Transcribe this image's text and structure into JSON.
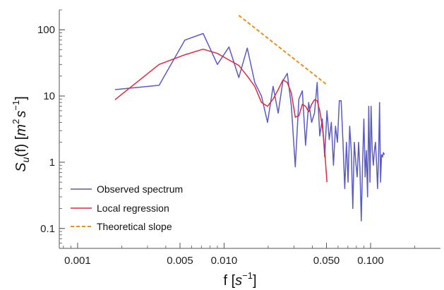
{
  "chart_data": {
    "type": "line",
    "title": "",
    "xlabel": {
      "base": "f",
      "unit": "s",
      "unit_exp": "−1"
    },
    "ylabel": {
      "base": "S",
      "sub": "u",
      "arg": "(f)",
      "unit1": "m",
      "unit1_exp": "2",
      "unit2": "s",
      "unit2_exp": "−1"
    },
    "xscale": "log",
    "yscale": "log",
    "xlim": [
      0.00075,
      0.3
    ],
    "ylim": [
      0.05,
      200
    ],
    "grid": false,
    "legend_position": "bottom-left",
    "x_ticks": [
      {
        "value": 0.001,
        "label": "0.001"
      },
      {
        "value": 0.005,
        "label": "0.005"
      },
      {
        "value": 0.01,
        "label": "0.010"
      },
      {
        "value": 0.05,
        "label": "0.050"
      },
      {
        "value": 0.1,
        "label": "0.100"
      }
    ],
    "y_ticks": [
      {
        "value": 0.1,
        "label": "0.1"
      },
      {
        "value": 1,
        "label": "1"
      },
      {
        "value": 10,
        "label": "10"
      },
      {
        "value": 100,
        "label": "100"
      }
    ],
    "series": [
      {
        "name": "Observed spectrum",
        "color": "#5a5ac8",
        "style": "solid",
        "points": [
          [
            0.0018,
            12.5
          ],
          [
            0.0036,
            14.5
          ],
          [
            0.0054,
            70
          ],
          [
            0.0072,
            88
          ],
          [
            0.009,
            30
          ],
          [
            0.0108,
            55
          ],
          [
            0.0126,
            19
          ],
          [
            0.0144,
            53
          ],
          [
            0.0162,
            16
          ],
          [
            0.018,
            10
          ],
          [
            0.0198,
            4
          ],
          [
            0.0216,
            14
          ],
          [
            0.0234,
            5.5
          ],
          [
            0.0252,
            17
          ],
          [
            0.027,
            22
          ],
          [
            0.0288,
            7
          ],
          [
            0.0306,
            0.85
          ],
          [
            0.0324,
            9
          ],
          [
            0.0342,
            12
          ],
          [
            0.036,
            1.8
          ],
          [
            0.0378,
            8
          ],
          [
            0.0396,
            4
          ],
          [
            0.0414,
            5.5
          ],
          [
            0.0432,
            16
          ],
          [
            0.045,
            2.5
          ],
          [
            0.0468,
            4.5
          ],
          [
            0.0486,
            1.2
          ],
          [
            0.0504,
            6
          ],
          [
            0.0522,
            2.2
          ],
          [
            0.054,
            4
          ],
          [
            0.0558,
            0.9
          ],
          [
            0.0576,
            3.5
          ],
          [
            0.0594,
            2
          ],
          [
            0.0612,
            8.5
          ],
          [
            0.063,
            8.5
          ],
          [
            0.0648,
            2
          ],
          [
            0.0666,
            0.4
          ],
          [
            0.0684,
            2
          ],
          [
            0.0702,
            0.5
          ],
          [
            0.072,
            3.5
          ],
          [
            0.0738,
            1.5
          ],
          [
            0.0756,
            0.2
          ],
          [
            0.0774,
            2
          ],
          [
            0.0792,
            1
          ],
          [
            0.081,
            0.6
          ],
          [
            0.0828,
            2
          ],
          [
            0.0846,
            0.8
          ],
          [
            0.0864,
            0.13
          ],
          [
            0.0882,
            1
          ],
          [
            0.09,
            4.5
          ],
          [
            0.0918,
            0.6
          ],
          [
            0.0936,
            1.5
          ],
          [
            0.0954,
            0.3
          ],
          [
            0.0972,
            7
          ],
          [
            0.099,
            0.5
          ],
          [
            0.1008,
            7
          ],
          [
            0.1026,
            1.5
          ],
          [
            0.1044,
            0.9
          ],
          [
            0.1062,
            1.5
          ],
          [
            0.108,
            2
          ],
          [
            0.1098,
            1
          ],
          [
            0.1116,
            0.4
          ],
          [
            0.1134,
            1.2
          ],
          [
            0.1152,
            8
          ],
          [
            0.117,
            0.5
          ],
          [
            0.1188,
            1.3
          ],
          [
            0.1206,
            1.2
          ],
          [
            0.1224,
            1.4
          ],
          [
            0.1242,
            1.3
          ]
        ]
      },
      {
        "name": "Local regression",
        "color": "#e6283c",
        "style": "solid",
        "points": [
          [
            0.0018,
            8.8
          ],
          [
            0.0036,
            30
          ],
          [
            0.0054,
            42
          ],
          [
            0.0072,
            51
          ],
          [
            0.009,
            44
          ],
          [
            0.0108,
            35
          ],
          [
            0.0126,
            29
          ],
          [
            0.0144,
            20
          ],
          [
            0.0162,
            14
          ],
          [
            0.018,
            8
          ],
          [
            0.0198,
            7
          ],
          [
            0.0216,
            9
          ],
          [
            0.0234,
            12.5
          ],
          [
            0.0252,
            17.5
          ],
          [
            0.027,
            16
          ],
          [
            0.0288,
            11
          ],
          [
            0.0306,
            4.8
          ],
          [
            0.0324,
            5
          ],
          [
            0.0342,
            7.5
          ],
          [
            0.036,
            7
          ],
          [
            0.0378,
            5.8
          ],
          [
            0.0396,
            7.5
          ],
          [
            0.0414,
            8.8
          ],
          [
            0.0432,
            8.5
          ],
          [
            0.045,
            6
          ],
          [
            0.0468,
            3.5
          ],
          [
            0.0486,
            1.5
          ],
          [
            0.0504,
            0.5
          ]
        ]
      },
      {
        "name": "Theoretical slope",
        "color": "#e8911c",
        "style": "dashed",
        "points": [
          [
            0.0126,
            165
          ],
          [
            0.05,
            15
          ]
        ]
      }
    ]
  }
}
